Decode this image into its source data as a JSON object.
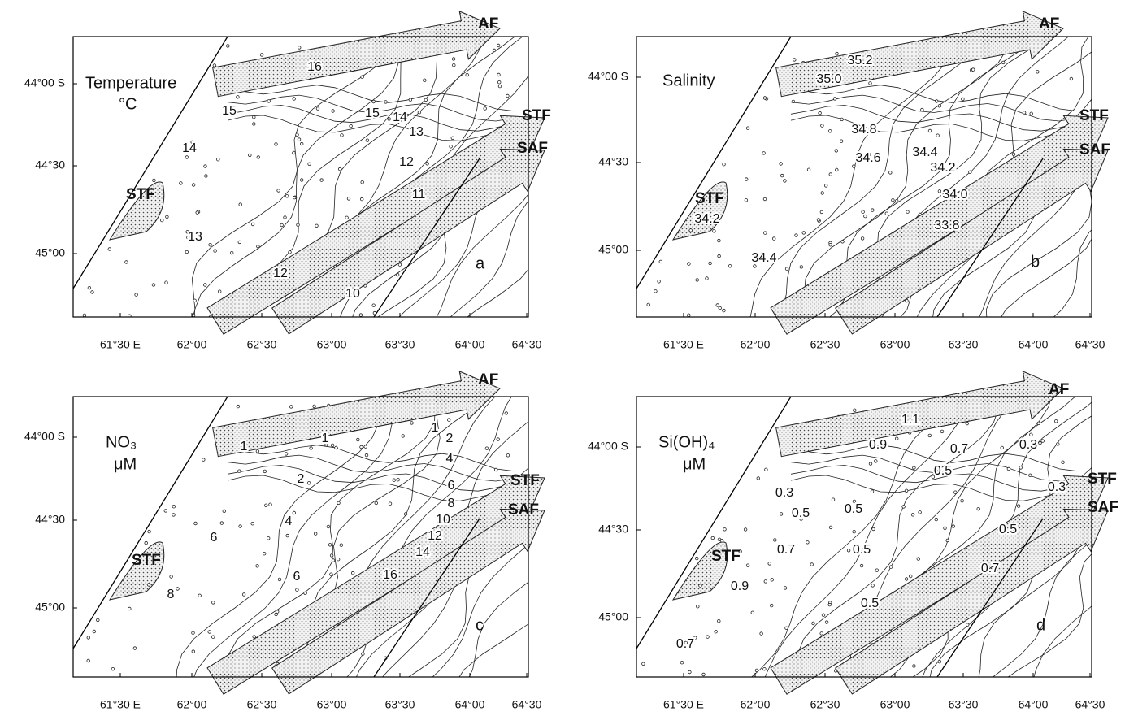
{
  "panels": [
    {
      "letter": "a",
      "title": "Temperature",
      "unit": "°C",
      "xticks": [
        "61°30 E",
        "62°00",
        "62°30",
        "63°00",
        "63°30",
        "64°00",
        "64°30"
      ],
      "yticks": [
        "44°00 S",
        "44°30",
        "45°00"
      ],
      "fronts": [
        "AF",
        "STF",
        "SAF",
        "STF"
      ],
      "contour_labels": [
        "16",
        "15",
        "15",
        "14",
        "13",
        "14",
        "12",
        "11",
        "13",
        "12",
        "10"
      ]
    },
    {
      "letter": "b",
      "title": "Salinity",
      "xticks": [
        "61°30 E",
        "62°00",
        "62°30",
        "63°00",
        "63°30",
        "64°00",
        "64°30"
      ],
      "yticks": [
        "44°00 S",
        "44°30",
        "45°00"
      ],
      "fronts": [
        "AF",
        "STF",
        "SAF",
        "STF"
      ],
      "contour_labels": [
        "35.2",
        "35.0",
        "34.8",
        "34.6",
        "34.4",
        "34.2",
        "34.0",
        "34.2",
        "33.8",
        "34.4"
      ]
    },
    {
      "letter": "c",
      "title": "NO₃",
      "unit": "μM",
      "xticks": [
        "61°30 E",
        "62°00",
        "62°30",
        "63°00",
        "63°30",
        "64°00",
        "64°30"
      ],
      "yticks": [
        "44°00 S",
        "44°30",
        "45°00"
      ],
      "fronts": [
        "AF",
        "STF",
        "SAF",
        "STF"
      ],
      "contour_labels": [
        "1",
        "2",
        "1",
        "1",
        "4",
        "2",
        "6",
        "8",
        "10",
        "4",
        "6",
        "12",
        "14",
        "6",
        "16",
        "8"
      ]
    },
    {
      "letter": "d",
      "title": "Si(OH)₄",
      "unit": "μM",
      "xticks": [
        "61°30 E",
        "62°00",
        "62°30",
        "63°00",
        "63°30",
        "64°00",
        "64°30"
      ],
      "yticks": [
        "44°00 S",
        "44°30",
        "45°00"
      ],
      "fronts": [
        "AF",
        "STF",
        "SAF",
        "STF"
      ],
      "contour_labels": [
        "1.1",
        "0.9",
        "0.7",
        "0.3",
        "0.3",
        "0.5",
        "0.5",
        "0.5",
        "0.3",
        "0.7",
        "0.5",
        "0.5",
        "0.9",
        "0.7",
        "0.5",
        "0.7"
      ]
    }
  ]
}
